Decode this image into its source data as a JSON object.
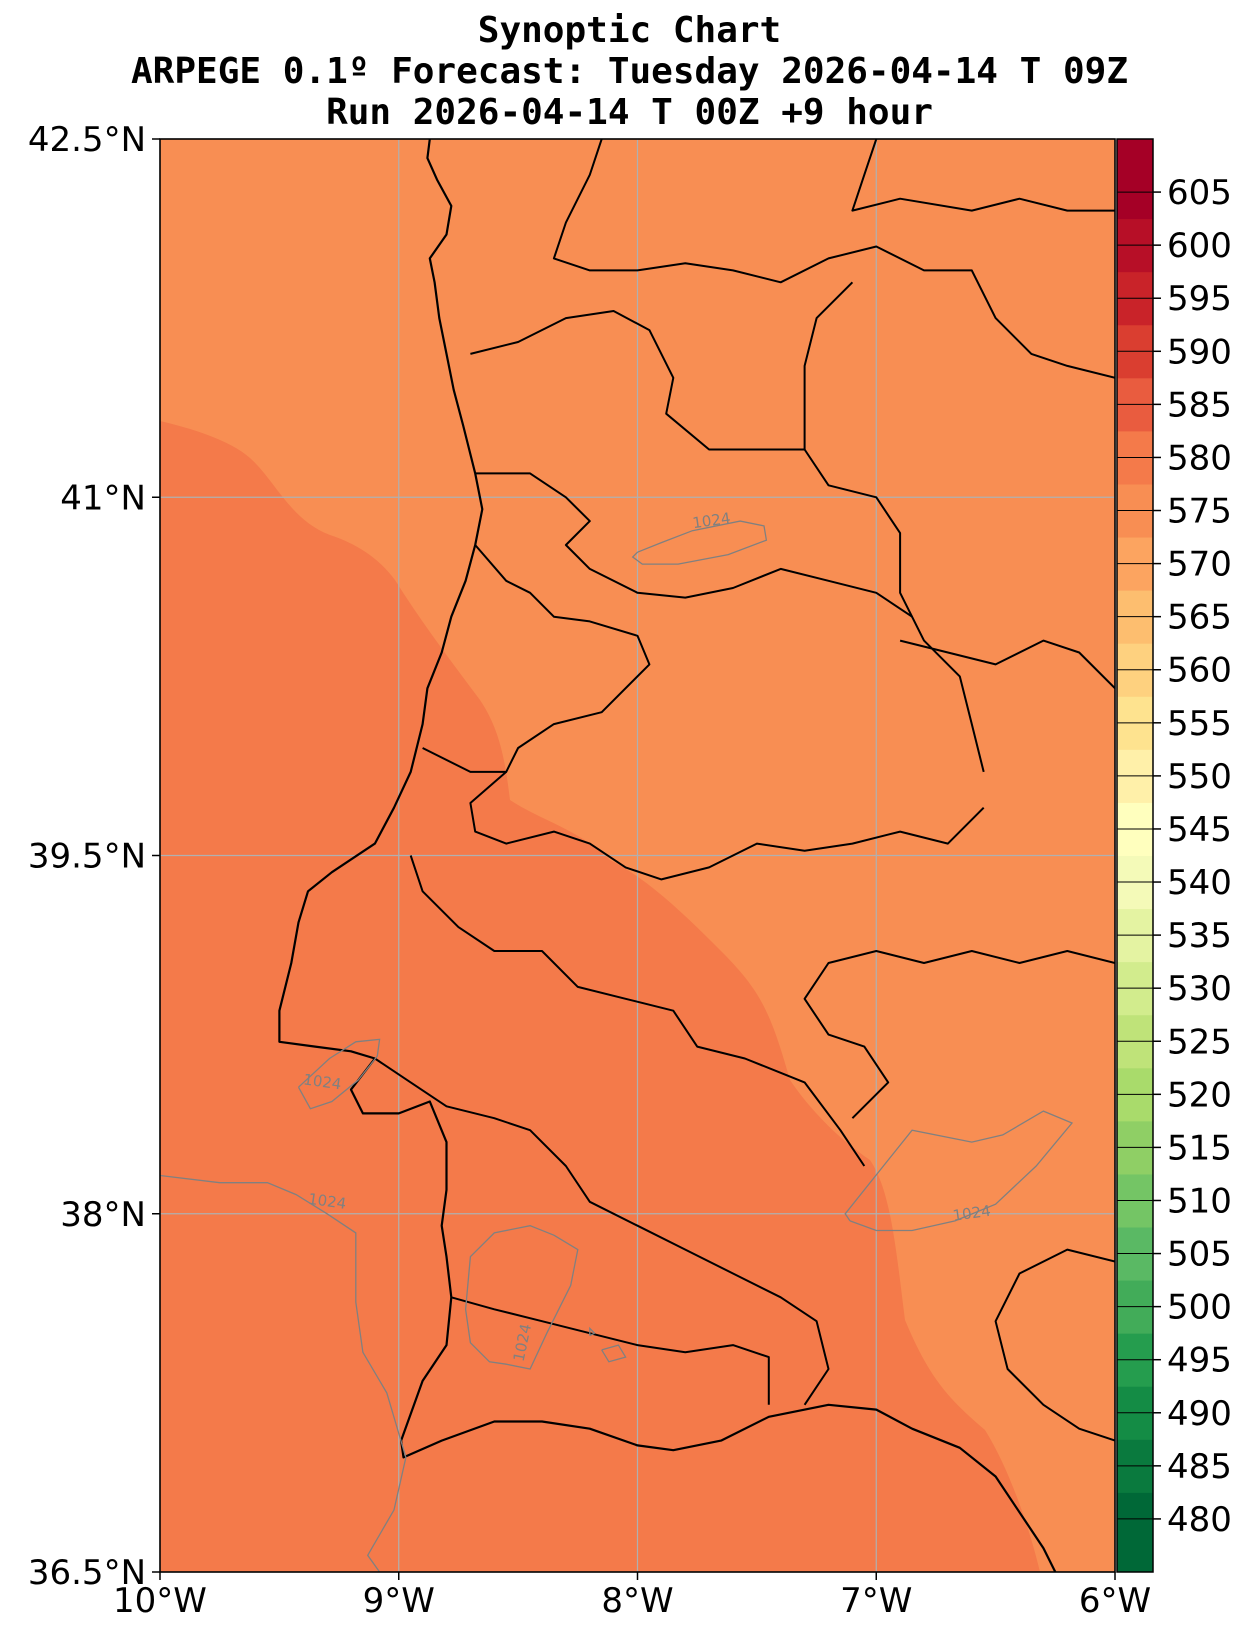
{
  "chart_data": {
    "type": "heatmap",
    "title_lines": [
      "Synoptic Chart",
      "ARPEGE 0.1º Forecast: Tuesday 2026-04-14 T 09Z",
      "Run 2026-04-14 T 00Z +9 hour"
    ],
    "xlim": [
      -10,
      -6
    ],
    "ylim": [
      36.5,
      42.5
    ],
    "grid": true,
    "x_ticks": [
      {
        "value": -10,
        "label": "10°W"
      },
      {
        "value": -9,
        "label": "9°W"
      },
      {
        "value": -8,
        "label": "8°W"
      },
      {
        "value": -7,
        "label": "7°W"
      },
      {
        "value": -6,
        "label": "6°W"
      }
    ],
    "y_ticks": [
      {
        "value": 42.5,
        "label": "42.5°N"
      },
      {
        "value": 41.0,
        "label": "41°N"
      },
      {
        "value": 39.5,
        "label": "39.5°N"
      },
      {
        "value": 38.0,
        "label": "38°N"
      },
      {
        "value": 36.5,
        "label": "36.5°N"
      }
    ],
    "field_regions": [
      {
        "band": 575,
        "color": "#f88e53",
        "location": "north and east land areas"
      },
      {
        "band": 580,
        "color": "#f47a4a",
        "location": "western ocean and southwest"
      }
    ],
    "isobars": [
      {
        "value": 1024,
        "label": "1024",
        "color": "#808080",
        "lines": [
          [
            [
              -8.0,
              40.77
            ],
            [
              -7.9,
              40.81
            ],
            [
              -7.77,
              40.86
            ],
            [
              -7.57,
              40.9
            ],
            [
              -7.47,
              40.88
            ],
            [
              -7.46,
              40.82
            ],
            [
              -7.62,
              40.76
            ],
            [
              -7.83,
              40.72
            ],
            [
              -7.98,
              40.72
            ],
            [
              -8.02,
              40.75
            ],
            [
              -8.0,
              40.77
            ]
          ],
          [
            [
              -9.42,
              38.53
            ],
            [
              -9.29,
              38.65
            ],
            [
              -9.18,
              38.72
            ],
            [
              -9.08,
              38.73
            ],
            [
              -9.09,
              38.66
            ],
            [
              -9.17,
              38.56
            ],
            [
              -9.28,
              38.47
            ],
            [
              -9.37,
              38.44
            ],
            [
              -9.42,
              38.53
            ]
          ],
          [
            [
              -10.0,
              38.16
            ],
            [
              -9.75,
              38.13
            ],
            [
              -9.55,
              38.13
            ],
            [
              -9.43,
              38.08
            ],
            [
              -9.3,
              38.0
            ],
            [
              -9.18,
              37.92
            ],
            [
              -9.18,
              37.63
            ],
            [
              -9.15,
              37.42
            ],
            [
              -9.05,
              37.25
            ],
            [
              -9.0,
              37.08
            ],
            [
              -8.97,
              36.98
            ],
            [
              -9.02,
              36.76
            ],
            [
              -9.13,
              36.57
            ],
            [
              -9.08,
              36.5
            ]
          ],
          [
            [
              -7.11,
              37.97
            ],
            [
              -7.13,
              38.0
            ],
            [
              -6.97,
              38.2
            ],
            [
              -6.85,
              38.35
            ],
            [
              -6.6,
              38.3
            ],
            [
              -6.47,
              38.33
            ],
            [
              -6.3,
              38.43
            ],
            [
              -6.18,
              38.38
            ],
            [
              -6.33,
              38.2
            ],
            [
              -6.5,
              38.04
            ],
            [
              -6.67,
              37.97
            ],
            [
              -6.85,
              37.93
            ],
            [
              -7.0,
              37.93
            ],
            [
              -7.11,
              37.97
            ]
          ],
          [
            [
              -8.35,
              37.91
            ],
            [
              -8.25,
              37.85
            ],
            [
              -8.28,
              37.7
            ],
            [
              -8.38,
              37.5
            ],
            [
              -8.45,
              37.35
            ],
            [
              -8.55,
              37.37
            ],
            [
              -8.62,
              37.38
            ],
            [
              -8.7,
              37.46
            ],
            [
              -8.72,
              37.6
            ],
            [
              -8.7,
              37.82
            ],
            [
              -8.6,
              37.92
            ],
            [
              -8.45,
              37.95
            ],
            [
              -8.35,
              37.91
            ]
          ],
          [
            [
              -8.15,
              37.43
            ],
            [
              -8.08,
              37.45
            ],
            [
              -8.05,
              37.4
            ],
            [
              -8.12,
              37.38
            ],
            [
              -8.15,
              37.43
            ]
          ],
          [
            [
              -8.2,
              37.49
            ],
            [
              -8.18,
              37.5
            ],
            [
              -8.2,
              37.52
            ],
            [
              -8.2,
              37.49
            ]
          ]
        ]
      }
    ],
    "colorbar": {
      "levels": [
        480,
        485,
        490,
        495,
        500,
        505,
        510,
        515,
        520,
        525,
        530,
        535,
        540,
        545,
        550,
        555,
        560,
        565,
        570,
        575,
        580,
        585,
        590,
        595,
        600,
        605
      ],
      "min": 475,
      "max": 610,
      "colors": [
        "#006837",
        "#0a7a3e",
        "#148c45",
        "#259d4e",
        "#42ac59",
        "#5ab964",
        "#74c565",
        "#8fcf65",
        "#a9db6b",
        "#bfe379",
        "#d2ec8d",
        "#e4f3a2",
        "#f4fab8",
        "#ffffbe",
        "#fff0a9",
        "#fee38f",
        "#fed17f",
        "#fdbe6f",
        "#fca460",
        "#f88e53",
        "#f47a4a",
        "#e95c3f",
        "#da3e30",
        "#c92329",
        "#b70f27",
        "#a50026"
      ]
    }
  },
  "coastline": [
    [
      -8.87,
      42.5
    ],
    [
      -8.88,
      42.42
    ],
    [
      -8.84,
      42.33
    ],
    [
      -8.78,
      42.22
    ],
    [
      -8.8,
      42.1
    ],
    [
      -8.87,
      42.0
    ],
    [
      -8.85,
      41.9
    ],
    [
      -8.83,
      41.75
    ],
    [
      -8.8,
      41.6
    ],
    [
      -8.77,
      41.45
    ],
    [
      -8.73,
      41.3
    ],
    [
      -8.68,
      41.1
    ],
    [
      -8.65,
      40.95
    ],
    [
      -8.68,
      40.8
    ],
    [
      -8.72,
      40.65
    ],
    [
      -8.78,
      40.5
    ],
    [
      -8.82,
      40.35
    ],
    [
      -8.88,
      40.2
    ],
    [
      -8.9,
      40.05
    ],
    [
      -8.95,
      39.85
    ],
    [
      -9.02,
      39.7
    ],
    [
      -9.1,
      39.55
    ],
    [
      -9.28,
      39.43
    ],
    [
      -9.38,
      39.35
    ],
    [
      -9.42,
      39.22
    ],
    [
      -9.45,
      39.05
    ],
    [
      -9.5,
      38.85
    ],
    [
      -9.5,
      38.72
    ],
    [
      -9.35,
      38.7
    ],
    [
      -9.2,
      38.68
    ],
    [
      -9.1,
      38.65
    ],
    [
      -9.2,
      38.52
    ],
    [
      -9.15,
      38.42
    ],
    [
      -9.0,
      38.42
    ],
    [
      -8.87,
      38.47
    ],
    [
      -8.8,
      38.3
    ],
    [
      -8.8,
      38.1
    ],
    [
      -8.82,
      37.95
    ],
    [
      -8.8,
      37.82
    ],
    [
      -8.78,
      37.65
    ],
    [
      -8.8,
      37.45
    ],
    [
      -8.9,
      37.3
    ],
    [
      -8.99,
      37.05
    ],
    [
      -8.98,
      36.98
    ],
    [
      -8.82,
      37.05
    ],
    [
      -8.6,
      37.13
    ],
    [
      -8.4,
      37.13
    ],
    [
      -8.2,
      37.1
    ],
    [
      -8.0,
      37.03
    ],
    [
      -7.85,
      37.01
    ],
    [
      -7.65,
      37.05
    ],
    [
      -7.45,
      37.15
    ],
    [
      -7.2,
      37.2
    ],
    [
      -7.0,
      37.18
    ],
    [
      -6.85,
      37.1
    ],
    [
      -6.65,
      37.02
    ],
    [
      -6.5,
      36.9
    ],
    [
      -6.38,
      36.72
    ],
    [
      -6.3,
      36.6
    ],
    [
      -6.25,
      36.5
    ]
  ],
  "regional_boundaries": [
    [
      [
        -8.15,
        42.5
      ],
      [
        -8.2,
        42.35
      ],
      [
        -8.3,
        42.15
      ],
      [
        -8.35,
        42.0
      ],
      [
        -8.2,
        41.95
      ],
      [
        -8.0,
        41.95
      ],
      [
        -7.8,
        41.98
      ],
      [
        -7.6,
        41.95
      ],
      [
        -7.4,
        41.9
      ],
      [
        -7.2,
        42.0
      ],
      [
        -7.0,
        42.05
      ],
      [
        -6.8,
        41.95
      ],
      [
        -6.6,
        41.95
      ],
      [
        -6.5,
        41.75
      ],
      [
        -6.35,
        41.6
      ],
      [
        -6.2,
        41.55
      ],
      [
        -6.0,
        41.5
      ]
    ],
    [
      [
        -7.0,
        42.5
      ],
      [
        -7.05,
        42.35
      ],
      [
        -7.1,
        42.2
      ],
      [
        -6.9,
        42.25
      ],
      [
        -6.6,
        42.2
      ],
      [
        -6.4,
        42.25
      ],
      [
        -6.2,
        42.2
      ],
      [
        -6.0,
        42.2
      ]
    ],
    [
      [
        -8.7,
        41.6
      ],
      [
        -8.5,
        41.65
      ],
      [
        -8.3,
        41.75
      ],
      [
        -8.1,
        41.78
      ],
      [
        -7.95,
        41.7
      ],
      [
        -7.85,
        41.5
      ],
      [
        -7.88,
        41.35
      ],
      [
        -7.7,
        41.2
      ],
      [
        -7.5,
        41.2
      ],
      [
        -7.3,
        41.2
      ],
      [
        -7.2,
        41.05
      ],
      [
        -7.0,
        41.0
      ],
      [
        -6.9,
        40.85
      ],
      [
        -6.9,
        40.6
      ],
      [
        -6.8,
        40.4
      ],
      [
        -6.65,
        40.25
      ],
      [
        -6.6,
        40.05
      ],
      [
        -6.55,
        39.85
      ]
    ],
    [
      [
        -7.3,
        41.2
      ],
      [
        -7.3,
        41.55
      ],
      [
        -7.25,
        41.75
      ],
      [
        -7.1,
        41.9
      ]
    ],
    [
      [
        -8.68,
        41.1
      ],
      [
        -8.45,
        41.1
      ],
      [
        -8.3,
        41.0
      ],
      [
        -8.2,
        40.9
      ],
      [
        -8.3,
        40.8
      ],
      [
        -8.2,
        40.7
      ],
      [
        -8.0,
        40.6
      ],
      [
        -7.8,
        40.58
      ],
      [
        -7.6,
        40.62
      ],
      [
        -7.4,
        40.7
      ],
      [
        -7.2,
        40.65
      ],
      [
        -7.0,
        40.6
      ],
      [
        -6.85,
        40.5
      ]
    ],
    [
      [
        -8.68,
        40.8
      ],
      [
        -8.55,
        40.65
      ],
      [
        -8.45,
        40.6
      ],
      [
        -8.35,
        40.5
      ],
      [
        -8.2,
        40.48
      ],
      [
        -8.0,
        40.42
      ],
      [
        -7.95,
        40.3
      ],
      [
        -8.15,
        40.1
      ],
      [
        -8.35,
        40.05
      ],
      [
        -8.5,
        39.95
      ],
      [
        -8.55,
        39.85
      ],
      [
        -8.7,
        39.85
      ],
      [
        -8.9,
        39.95
      ]
    ],
    [
      [
        -8.55,
        39.85
      ],
      [
        -8.7,
        39.72
      ],
      [
        -8.68,
        39.6
      ],
      [
        -8.55,
        39.55
      ],
      [
        -8.35,
        39.6
      ],
      [
        -8.2,
        39.55
      ],
      [
        -8.05,
        39.45
      ],
      [
        -7.9,
        39.4
      ],
      [
        -7.7,
        39.45
      ],
      [
        -7.5,
        39.55
      ],
      [
        -7.3,
        39.52
      ],
      [
        -7.1,
        39.55
      ],
      [
        -6.9,
        39.6
      ],
      [
        -6.7,
        39.55
      ],
      [
        -6.55,
        39.7
      ]
    ],
    [
      [
        -8.95,
        39.5
      ],
      [
        -8.9,
        39.35
      ],
      [
        -8.75,
        39.2
      ],
      [
        -8.6,
        39.1
      ],
      [
        -8.4,
        39.1
      ],
      [
        -8.25,
        38.95
      ],
      [
        -8.05,
        38.9
      ],
      [
        -7.85,
        38.85
      ],
      [
        -7.75,
        38.7
      ],
      [
        -7.55,
        38.65
      ],
      [
        -7.3,
        38.55
      ],
      [
        -7.15,
        38.35
      ],
      [
        -7.05,
        38.2
      ]
    ],
    [
      [
        -9.1,
        38.65
      ],
      [
        -8.95,
        38.55
      ],
      [
        -8.8,
        38.45
      ],
      [
        -8.6,
        38.4
      ],
      [
        -8.45,
        38.35
      ],
      [
        -8.3,
        38.2
      ],
      [
        -8.2,
        38.05
      ],
      [
        -8.0,
        37.95
      ],
      [
        -7.8,
        37.85
      ],
      [
        -7.6,
        37.75
      ],
      [
        -7.4,
        37.65
      ],
      [
        -7.25,
        37.55
      ],
      [
        -7.2,
        37.35
      ],
      [
        -7.3,
        37.2
      ]
    ],
    [
      [
        -8.78,
        37.65
      ],
      [
        -8.6,
        37.6
      ],
      [
        -8.4,
        37.55
      ],
      [
        -8.2,
        37.5
      ],
      [
        -8.0,
        37.45
      ],
      [
        -7.8,
        37.42
      ],
      [
        -7.6,
        37.45
      ],
      [
        -7.45,
        37.4
      ],
      [
        -7.45,
        37.2
      ]
    ],
    [
      [
        -6.0,
        39.05
      ],
      [
        -6.2,
        39.1
      ],
      [
        -6.4,
        39.05
      ],
      [
        -6.6,
        39.1
      ],
      [
        -6.8,
        39.05
      ],
      [
        -7.0,
        39.1
      ],
      [
        -7.2,
        39.05
      ],
      [
        -7.3,
        38.9
      ],
      [
        -7.2,
        38.75
      ],
      [
        -7.05,
        38.7
      ],
      [
        -6.95,
        38.55
      ],
      [
        -7.1,
        38.4
      ]
    ],
    [
      [
        -6.0,
        37.8
      ],
      [
        -6.2,
        37.85
      ],
      [
        -6.4,
        37.75
      ],
      [
        -6.5,
        37.55
      ],
      [
        -6.45,
        37.35
      ],
      [
        -6.3,
        37.2
      ],
      [
        -6.15,
        37.1
      ],
      [
        -6.0,
        37.05
      ]
    ],
    [
      [
        -6.0,
        40.2
      ],
      [
        -6.15,
        40.35
      ],
      [
        -6.3,
        40.4
      ],
      [
        -6.5,
        40.3
      ],
      [
        -6.7,
        40.35
      ],
      [
        -6.9,
        40.4
      ]
    ]
  ]
}
